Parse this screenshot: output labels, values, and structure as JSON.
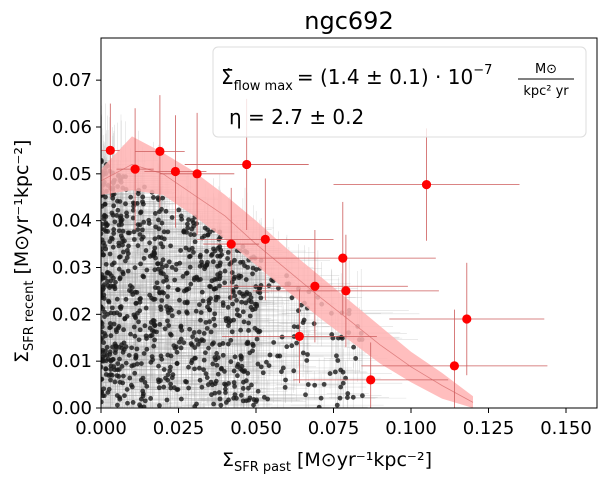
{
  "chart_data": {
    "type": "scatter",
    "title": "ngc692",
    "xlabel": {
      "main": "Σ",
      "sub": "SFR past",
      "unit": "[M⊙yr⁻¹kpc⁻²]"
    },
    "ylabel": {
      "main": "Σ",
      "sub": "SFR recent",
      "unit": "[M⊙yr⁻¹kpc⁻²]"
    },
    "xlim": [
      0.0,
      0.16
    ],
    "ylim": [
      0.0,
      0.079
    ],
    "xticks": [
      "0.000",
      "0.025",
      "0.050",
      "0.075",
      "0.100",
      "0.125",
      "0.150"
    ],
    "yticks": [
      "0.00",
      "0.01",
      "0.02",
      "0.03",
      "0.04",
      "0.05",
      "0.06",
      "0.07"
    ],
    "grid": false,
    "annotations": {
      "flow_lhs": "Σ̇",
      "flow_sub": "flow max",
      "flow_rhs": "= (1.4 ± 0.1) · 10",
      "flow_exp": "−7",
      "flow_unit_num": "M⊙",
      "flow_unit_den": "kpc² yr",
      "eta": "η = 2.7 ± 0.2"
    },
    "background_points": {
      "description_count": 900,
      "x_range": [
        0.0,
        0.09
      ],
      "y_range": [
        0.0,
        0.055
      ]
    },
    "binned_points": [
      {
        "x": 0.003,
        "y": 0.055,
        "xerr": 0.003,
        "yerr": 0.01
      },
      {
        "x": 0.011,
        "y": 0.051,
        "xerr": 0.006,
        "yerr": 0.013
      },
      {
        "x": 0.019,
        "y": 0.0548,
        "xerr": 0.008,
        "yerr": 0.012
      },
      {
        "x": 0.024,
        "y": 0.0505,
        "xerr": 0.01,
        "yerr": 0.012
      },
      {
        "x": 0.031,
        "y": 0.05,
        "xerr": 0.012,
        "yerr": 0.013
      },
      {
        "x": 0.042,
        "y": 0.035,
        "xerr": 0.009,
        "yerr": 0.012
      },
      {
        "x": 0.047,
        "y": 0.052,
        "xerr": 0.02,
        "yerr": 0.014
      },
      {
        "x": 0.053,
        "y": 0.036,
        "xerr": 0.022,
        "yerr": 0.013
      },
      {
        "x": 0.064,
        "y": 0.0153,
        "xerr": 0.025,
        "yerr": 0.01
      },
      {
        "x": 0.069,
        "y": 0.026,
        "xerr": 0.03,
        "yerr": 0.012
      },
      {
        "x": 0.078,
        "y": 0.032,
        "xerr": 0.03,
        "yerr": 0.012
      },
      {
        "x": 0.079,
        "y": 0.025,
        "xerr": 0.03,
        "yerr": 0.012
      },
      {
        "x": 0.087,
        "y": 0.006,
        "xerr": 0.025,
        "yerr": 0.008
      },
      {
        "x": 0.105,
        "y": 0.0477,
        "xerr": 0.03,
        "yerr": 0.012
      },
      {
        "x": 0.114,
        "y": 0.009,
        "xerr": 0.03,
        "yerr": 0.012
      },
      {
        "x": 0.118,
        "y": 0.019,
        "xerr": 0.025,
        "yerr": 0.012
      }
    ],
    "fit_band": {
      "x": [
        0.0,
        0.01,
        0.02,
        0.03,
        0.04,
        0.05,
        0.06,
        0.07,
        0.08,
        0.09,
        0.1,
        0.11,
        0.12
      ],
      "lower": [
        0.0455,
        0.0465,
        0.0455,
        0.041,
        0.036,
        0.0305,
        0.025,
        0.0195,
        0.0145,
        0.0095,
        0.0055,
        0.002,
        0.0
      ],
      "upper": [
        0.051,
        0.058,
        0.0545,
        0.0505,
        0.0455,
        0.04,
        0.034,
        0.0285,
        0.023,
        0.0175,
        0.012,
        0.0075,
        0.0025
      ],
      "mid": [
        0.0485,
        0.052,
        0.05,
        0.0455,
        0.041,
        0.035,
        0.0295,
        0.024,
        0.0188,
        0.0135,
        0.0088,
        0.0048,
        0.0012
      ]
    },
    "colors": {
      "background_points": "#1a1a1a",
      "background_errors": "#a0a0a0",
      "binned_points": "#ff0000",
      "binned_errors": "#cd5c5c",
      "fit_band": "#ffb3b3",
      "fit_line": "#e08080"
    }
  }
}
